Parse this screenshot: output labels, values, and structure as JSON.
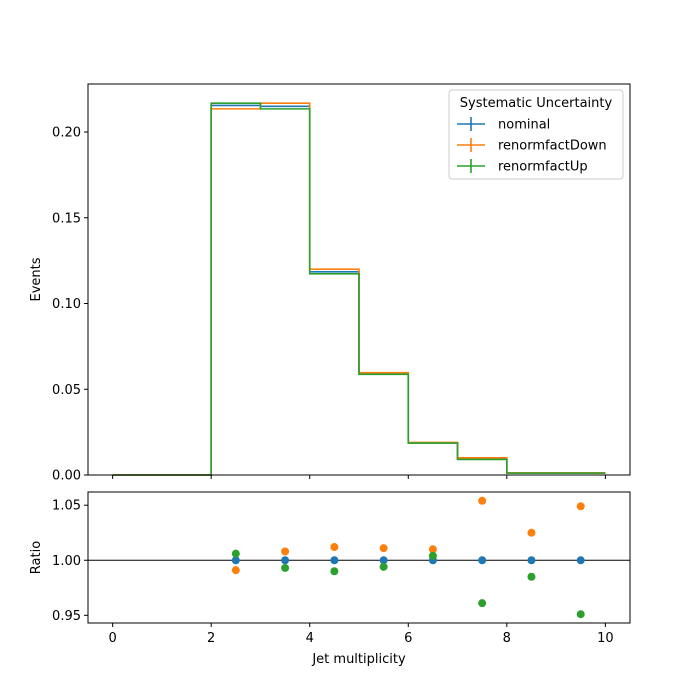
{
  "chart_data": [
    {
      "type": "line",
      "drawstyle": "steps",
      "ylabel": "Events",
      "xlim": [
        -0.5,
        10.5
      ],
      "ylim": [
        0,
        0.228
      ],
      "yticks": [
        0.0,
        0.05,
        0.1,
        0.15,
        0.2
      ],
      "ytick_labels": [
        "0.00",
        "0.05",
        "0.10",
        "0.15",
        "0.20"
      ],
      "xticks": [
        0,
        2,
        4,
        6,
        8,
        10
      ],
      "bin_edges": [
        0,
        1,
        2,
        3,
        4,
        5,
        6,
        7,
        8,
        9,
        10
      ],
      "legend": {
        "title": "Systematic Uncertainty",
        "placement": "top-right"
      },
      "series": [
        {
          "name": "nominal",
          "color": "#1f77b4",
          "values": [
            0.0,
            0.0,
            0.2155,
            0.215,
            0.1185,
            0.059,
            0.0187,
            0.0095,
            0.0012,
            0.0012
          ]
        },
        {
          "name": "renormfactDown",
          "color": "#ff7f0e",
          "values": [
            0.0,
            0.0,
            0.2135,
            0.2168,
            0.12,
            0.0597,
            0.019,
            0.01,
            0.0012,
            0.0012
          ]
        },
        {
          "name": "renormfactUp",
          "color": "#2ca02c",
          "values": [
            0.0,
            0.0,
            0.2168,
            0.2135,
            0.1173,
            0.0587,
            0.0186,
            0.0091,
            0.0011,
            0.0011
          ]
        }
      ]
    },
    {
      "type": "scatter",
      "xlabel": "Jet multiplicity",
      "ylabel": "Ratio",
      "xlim": [
        -0.5,
        10.5
      ],
      "ylim": [
        0.943,
        1.062
      ],
      "yticks": [
        0.95,
        1.0,
        1.05
      ],
      "ytick_labels": [
        "0.95",
        "1.00",
        "1.05"
      ],
      "xticks": [
        0,
        2,
        4,
        6,
        8,
        10
      ],
      "xtick_labels": [
        "0",
        "2",
        "4",
        "6",
        "8",
        "10"
      ],
      "reference_line": 1.0,
      "x": [
        2.5,
        3.5,
        4.5,
        5.5,
        6.5,
        7.5,
        8.5,
        9.5
      ],
      "series": [
        {
          "name": "nominal",
          "color": "#1f77b4",
          "values": [
            1.0,
            1.0,
            1.0,
            1.0,
            1.0,
            1.0,
            1.0,
            1.0
          ]
        },
        {
          "name": "renormfactDown",
          "color": "#ff7f0e",
          "values": [
            0.991,
            1.008,
            1.012,
            1.011,
            1.01,
            1.054,
            1.025,
            1.049
          ]
        },
        {
          "name": "renormfactUp",
          "color": "#2ca02c",
          "values": [
            1.006,
            0.993,
            0.99,
            0.994,
            1.004,
            0.961,
            0.985,
            0.951
          ]
        }
      ]
    }
  ]
}
